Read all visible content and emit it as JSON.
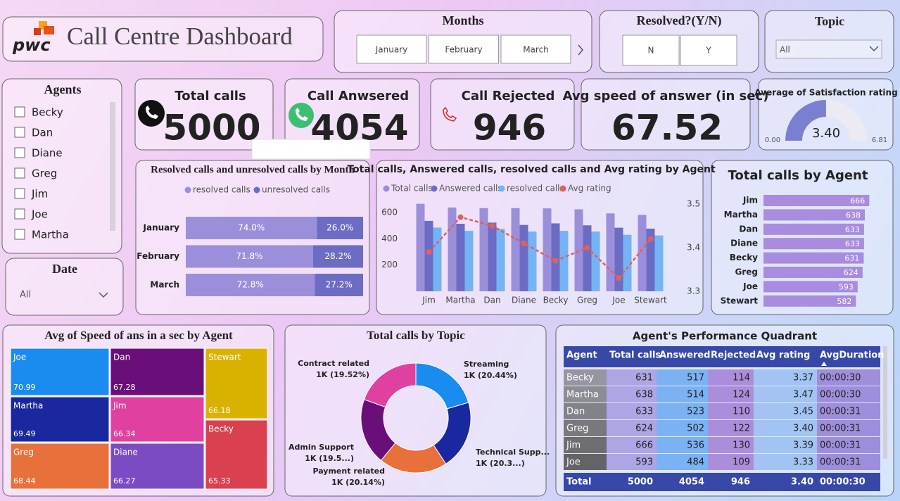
{
  "header": {
    "logo": "pwc",
    "title": "Call Centre Dashboard"
  },
  "slicers": {
    "months": {
      "title": "Months",
      "items": [
        "January",
        "February",
        "March"
      ]
    },
    "resolved": {
      "title": "Resolved?(Y/N)",
      "items": [
        "N",
        "Y"
      ]
    },
    "topic": {
      "title": "Topic",
      "selected": "All"
    },
    "agents": {
      "title": "Agents",
      "items": [
        "Becky",
        "Dan",
        "Diane",
        "Greg",
        "Jim",
        "Joe",
        "Martha"
      ]
    },
    "date": {
      "title": "Date",
      "selected": "All"
    }
  },
  "kpis": [
    {
      "label": "Total calls",
      "value": 5000
    },
    {
      "label": "Call Anwsered",
      "value": 4054
    },
    {
      "label": "Call Rejected",
      "value": 946
    },
    {
      "label": "Avg speed of answer (in sec)",
      "value": 67.52
    }
  ],
  "chart_data": [
    {
      "type": "gauge",
      "title": "Average of Satisfaction rating",
      "value": 3.4,
      "value_label": "3.40",
      "ylim": [
        0,
        6.81
      ],
      "yticks": [
        {
          "value": 0,
          "label": "0.00"
        },
        6.81
      ],
      "color": "#7a7fd0"
    },
    {
      "type": "stacked_bar_100",
      "title": "Resolved calls and unresolved calls by Month",
      "categories": [
        "January",
        "February",
        "March"
      ],
      "xlim": [
        0,
        100
      ],
      "series": [
        {
          "name": "resolved calls",
          "color": "#9b8fdc",
          "values": [
            74.0,
            71.8,
            72.8
          ],
          "value_labels": [
            "74.0%",
            "71.8%",
            "72.8%"
          ]
        },
        {
          "name": "unresolved calls",
          "color": "#6c6cc4",
          "values": [
            26.0,
            28.2,
            27.2
          ],
          "value_labels": [
            "26.0%",
            "28.2%",
            "27.2%"
          ]
        }
      ]
    },
    {
      "type": "combo",
      "title": "Total calls, Answered calls, resolved calls and Avg rating by Agent",
      "categories": [
        "Jim",
        "Martha",
        "Dan",
        "Diane",
        "Becky",
        "Greg",
        "Joe",
        "Stewart"
      ],
      "series": [
        {
          "name": "Total calls",
          "color": "#9b8fdc",
          "values": [
            666,
            638,
            633,
            633,
            631,
            624,
            593,
            582
          ]
        },
        {
          "name": "Answered calls",
          "color": "#6c6cc4",
          "values": [
            536,
            514,
            523,
            505,
            517,
            502,
            484,
            477
          ]
        },
        {
          "name": "resolved calls",
          "color": "#74b4f4",
          "values": [
            485,
            460,
            475,
            455,
            460,
            455,
            430,
            425
          ]
        },
        {
          "name": "Avg rating",
          "color": "#e06060",
          "axis": "y2",
          "values": [
            3.39,
            3.47,
            3.45,
            3.41,
            3.37,
            3.4,
            3.33,
            3.42
          ]
        }
      ],
      "ylim": [
        0,
        664
      ],
      "yticks": [
        200,
        400,
        600
      ],
      "y2lim": [
        3.3,
        3.5
      ],
      "y2ticks": [
        3.3,
        3.4,
        3.5
      ]
    },
    {
      "type": "hbar",
      "title": "Total calls by Agent",
      "categories": [
        "Jim",
        "Martha",
        "Dan",
        "Diane",
        "Becky",
        "Greg",
        "Joe",
        "Stewart"
      ],
      "values": [
        666,
        638,
        633,
        633,
        631,
        624,
        593,
        582
      ],
      "color": "#a98be0",
      "xlim": [
        0,
        700
      ]
    },
    {
      "type": "treemap",
      "title": "Avg of Speed of ans in a sec by Agent",
      "categories": [
        "Joe",
        "Dan",
        "Stewart",
        "Martha",
        "Jim",
        "Becky",
        "Greg",
        "Diane"
      ],
      "values": [
        70.99,
        67.28,
        66.18,
        69.49,
        66.34,
        65.33,
        68.44,
        66.27
      ],
      "colors": [
        "#1a8cf0",
        "#6a0f7a",
        "#d9b200",
        "#1a28a0",
        "#e040a0",
        "#d94050",
        "#e8703a",
        "#7b4bc4"
      ]
    },
    {
      "type": "donut",
      "title": "Total calls by Topic",
      "categories": [
        "Streaming",
        "Technical Supp...",
        "Payment related",
        "Admin Support",
        "Contract related"
      ],
      "values": [
        1022,
        1018,
        1007,
        977,
        976
      ],
      "value_labels": [
        "1K (20.44%)",
        "1K (20.3...)",
        "1K (20.14%)",
        "1K (19.5...)",
        "1K (19.52%)"
      ],
      "colors": [
        "#1a8cf0",
        "#1a28a0",
        "#e8703a",
        "#6a0f7a",
        "#e040a0"
      ]
    }
  ],
  "table": {
    "title": "Agent's Performance Quadrant",
    "columns": [
      "Agent",
      "Total calls",
      "Answered",
      "Rejected",
      "Avg rating",
      "AvgDuration"
    ],
    "rows": [
      [
        "Becky",
        "631",
        "517",
        "114",
        "3.37",
        "00:00:30"
      ],
      [
        "Martha",
        "638",
        "514",
        "124",
        "3.47",
        "00:00:30"
      ],
      [
        "Dan",
        "633",
        "523",
        "110",
        "3.45",
        "00:00:31"
      ],
      [
        "Greg",
        "624",
        "502",
        "122",
        "3.40",
        "00:00:31"
      ],
      [
        "Jim",
        "666",
        "536",
        "130",
        "3.39",
        "00:00:31"
      ],
      [
        "Joe",
        "593",
        "484",
        "109",
        "3.33",
        "00:00:31"
      ]
    ],
    "total": [
      "Total",
      "5000",
      "4054",
      "946",
      "3.40",
      "00:00:30"
    ]
  }
}
